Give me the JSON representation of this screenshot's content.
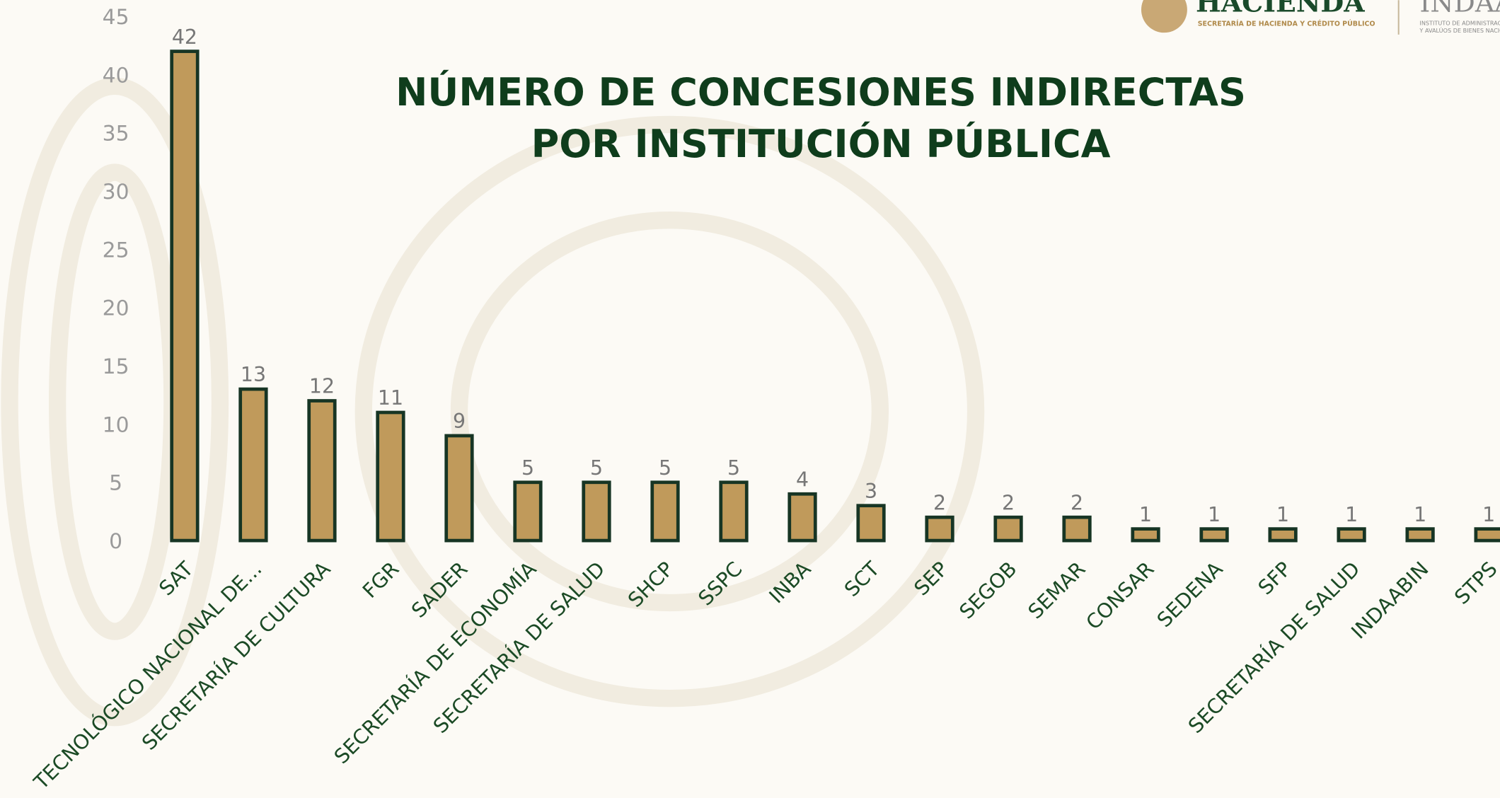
{
  "chart_data": {
    "type": "bar",
    "title": [
      "NÚMERO DE CONCESIONES INDIRECTAS",
      "POR INSTITUCIÓN PÚBLICA"
    ],
    "logo_texts": [
      "HACIENDA",
      "SECRETARÍA DE HACIENDA Y CRÉDITO PÚBLICO",
      "INDAABIN",
      "INSTITUTO DE ADMINISTRACIÓN",
      "Y AVALÚOS DE BIENES NACIONALES"
    ],
    "categories": [
      "SAT",
      "TECNOLÓGICO NACIONAL DE...",
      "SECRETARÍA DE CULTURA",
      "FGR",
      "SADER",
      "SECRETARÍA DE ECONOMÍA",
      "SECRETARÍA DE SALUD",
      "SHCP",
      "SSPC",
      "INBA",
      "SCT",
      "SEP",
      "SEGOB",
      "SEMAR",
      "CONSAR",
      "SEDENA",
      "SFP",
      "SECRETARÍA DE SALUD",
      "INDAABIN",
      "STPS"
    ],
    "values": [
      42,
      13,
      12,
      11,
      9,
      5,
      5,
      5,
      5,
      4,
      3,
      2,
      2,
      2,
      1,
      1,
      1,
      1,
      1,
      1
    ],
    "color": "#c09a5b",
    "edge_color": "#173524",
    "ylim": [
      0,
      45
    ],
    "yticks": [
      0,
      5,
      10,
      15,
      20,
      25,
      30,
      35,
      40,
      45
    ],
    "grid": false
  }
}
